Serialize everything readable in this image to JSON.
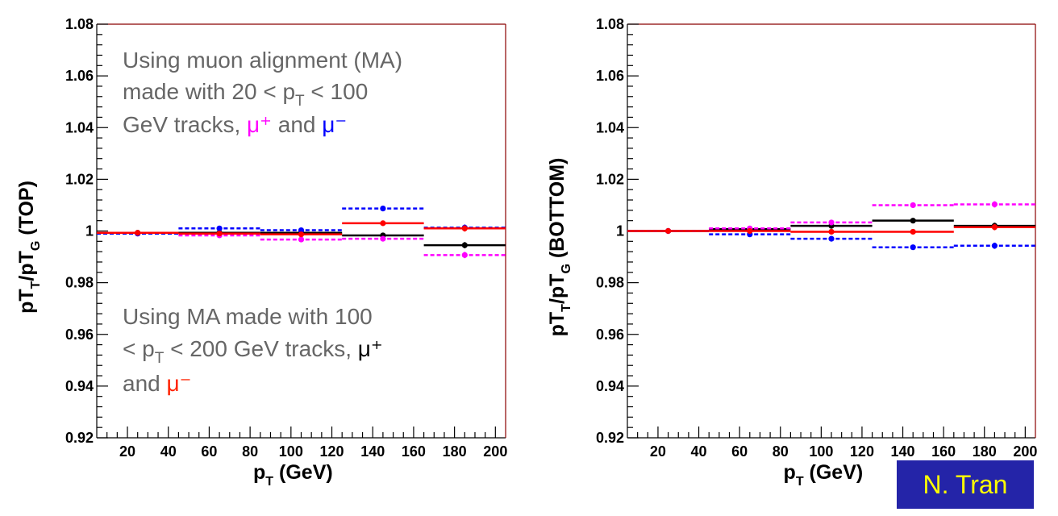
{
  "chart_data": [
    {
      "type": "scatter",
      "xlabel_main": "p",
      "xlabel_sub": "T",
      "xlabel_unit": "(GeV)",
      "ylabel": {
        "p1": "pT",
        "s1": "T",
        "p2": "/pT",
        "s2": "G",
        "p3": "(TOP)"
      },
      "xlim": [
        5,
        205
      ],
      "ylim": [
        0.92,
        1.08
      ],
      "xticks": [
        20,
        40,
        60,
        80,
        100,
        120,
        140,
        160,
        180,
        200
      ],
      "yticks": [
        0.92,
        0.94,
        0.96,
        0.98,
        1,
        1.02,
        1.04,
        1.06,
        1.08
      ],
      "ytick_labels": [
        "0.92",
        "0.94",
        "0.96",
        "0.98",
        "1",
        "1.02",
        "1.04",
        "1.06",
        "1.08"
      ],
      "series": [
        {
          "color": "#000000",
          "style": "solid",
          "bins": [
            [
              5,
              45,
              0.9993
            ],
            [
              45,
              85,
              0.9993
            ],
            [
              85,
              125,
              0.9993
            ],
            [
              125,
              165,
              0.9983
            ],
            [
              165,
              205,
              0.9945
            ]
          ],
          "points": [
            [
              25,
              0.9993
            ],
            [
              65,
              0.9993
            ],
            [
              105,
              0.9993
            ],
            [
              145,
              0.9983
            ],
            [
              185,
              0.9945
            ]
          ],
          "errors": [
            0.0003,
            0.0004,
            0.0005,
            0.0007,
            0.0012
          ]
        },
        {
          "color": "#ff00ff",
          "style": "dashed",
          "bins": [
            [
              5,
              45,
              0.999
            ],
            [
              45,
              85,
              0.9983
            ],
            [
              85,
              125,
              0.9967
            ],
            [
              125,
              165,
              0.997
            ],
            [
              165,
              205,
              0.9907
            ]
          ],
          "points": [
            [
              25,
              0.999
            ],
            [
              65,
              0.9983
            ],
            [
              105,
              0.9967
            ],
            [
              145,
              0.997
            ],
            [
              185,
              0.9907
            ]
          ],
          "errors": [
            0.0003,
            0.0004,
            0.0005,
            0.0007,
            0.0012
          ]
        },
        {
          "color": "#0000ff",
          "style": "dashed",
          "bins": [
            [
              5,
              45,
              0.999
            ],
            [
              45,
              85,
              1.001
            ],
            [
              85,
              125,
              1.0003
            ],
            [
              125,
              165,
              1.0087
            ],
            [
              165,
              205,
              1.0013
            ]
          ],
          "points": [
            [
              25,
              0.999
            ],
            [
              65,
              1.001
            ],
            [
              105,
              1.0003
            ],
            [
              145,
              1.0087
            ],
            [
              185,
              1.0013
            ]
          ],
          "errors": [
            0.0003,
            0.0004,
            0.0005,
            0.0007,
            0.0012
          ]
        },
        {
          "color": "#ff0000",
          "style": "solid",
          "bins": [
            [
              5,
              45,
              0.9993
            ],
            [
              45,
              85,
              0.999
            ],
            [
              85,
              125,
              0.9987
            ],
            [
              125,
              165,
              1.003
            ],
            [
              165,
              205,
              1.001
            ]
          ],
          "points": [
            [
              25,
              0.9993
            ],
            [
              65,
              0.999
            ],
            [
              105,
              0.9987
            ],
            [
              145,
              1.003
            ],
            [
              185,
              1.001
            ]
          ],
          "errors": [
            0.0003,
            0.0004,
            0.0005,
            0.0007,
            0.0012
          ]
        }
      ],
      "annotations": {
        "top": {
          "line1": "Using muon alignment (MA)",
          "line2a": "made with 20 < p",
          "line2sub": "T",
          "line2b": " < 100",
          "line3a": "GeV tracks, ",
          "mu_plus": "μ⁺",
          "and": " and ",
          "mu_minus": "μ⁻"
        },
        "bottom": {
          "line1": "Using MA made with 100",
          "line2a": "< p",
          "line2sub": "T",
          "line2b": " < 200 GeV tracks, ",
          "mu_plus": "μ⁺",
          "line3a": "and ",
          "mu_minus": "μ⁻"
        }
      }
    },
    {
      "type": "scatter",
      "xlabel_main": "p",
      "xlabel_sub": "T",
      "xlabel_unit": "(GeV)",
      "ylabel": {
        "p1": "pT",
        "s1": "T",
        "p2": "/pT",
        "s2": "G",
        "p3": "(BOTTOM)"
      },
      "xlim": [
        5,
        205
      ],
      "ylim": [
        0.92,
        1.08
      ],
      "xticks": [
        20,
        40,
        60,
        80,
        100,
        120,
        140,
        160,
        180,
        200
      ],
      "yticks": [
        0.92,
        0.94,
        0.96,
        0.98,
        1,
        1.02,
        1.04,
        1.06,
        1.08
      ],
      "ytick_labels": [
        "0.92",
        "0.94",
        "0.96",
        "0.98",
        "1",
        "1.02",
        "1.04",
        "1.06",
        "1.08"
      ],
      "series": [
        {
          "color": "#000000",
          "style": "solid",
          "bins": [
            [
              5,
              45,
              1.0
            ],
            [
              45,
              85,
              1.0007
            ],
            [
              85,
              125,
              1.002
            ],
            [
              125,
              165,
              1.004
            ],
            [
              165,
              205,
              1.002
            ]
          ],
          "points": [
            [
              25,
              1.0
            ],
            [
              65,
              1.0007
            ],
            [
              105,
              1.002
            ],
            [
              145,
              1.004
            ],
            [
              185,
              1.002
            ]
          ],
          "errors": [
            0.0003,
            0.0004,
            0.0005,
            0.0007,
            0.0012
          ]
        },
        {
          "color": "#ff00ff",
          "style": "dashed",
          "bins": [
            [
              5,
              45,
              1.0
            ],
            [
              45,
              85,
              1.001
            ],
            [
              85,
              125,
              1.0033
            ],
            [
              125,
              165,
              1.01
            ],
            [
              165,
              205,
              1.0103
            ]
          ],
          "points": [
            [
              25,
              1.0
            ],
            [
              65,
              1.001
            ],
            [
              105,
              1.0033
            ],
            [
              145,
              1.01
            ],
            [
              185,
              1.0103
            ]
          ],
          "errors": [
            0.0003,
            0.0004,
            0.0005,
            0.0007,
            0.0012
          ]
        },
        {
          "color": "#0000ff",
          "style": "dashed",
          "bins": [
            [
              5,
              45,
              1.0
            ],
            [
              45,
              85,
              0.9987
            ],
            [
              85,
              125,
              0.997
            ],
            [
              125,
              165,
              0.9937
            ],
            [
              165,
              205,
              0.9943
            ]
          ],
          "points": [
            [
              25,
              1.0
            ],
            [
              65,
              0.9987
            ],
            [
              105,
              0.997
            ],
            [
              145,
              0.9937
            ],
            [
              185,
              0.9943
            ]
          ],
          "errors": [
            0.0003,
            0.0004,
            0.0005,
            0.0007,
            0.0012
          ]
        },
        {
          "color": "#ff0000",
          "style": "solid",
          "bins": [
            [
              5,
              45,
              1.0
            ],
            [
              45,
              85,
              1.0
            ],
            [
              85,
              125,
              0.9997
            ],
            [
              125,
              165,
              0.9997
            ],
            [
              165,
              205,
              1.0015
            ]
          ],
          "points": [
            [
              25,
              1.0
            ],
            [
              65,
              1.0
            ],
            [
              105,
              0.9997
            ],
            [
              145,
              0.9997
            ],
            [
              185,
              1.0015
            ]
          ],
          "errors": [
            0.0003,
            0.0004,
            0.0005,
            0.0007,
            0.0012
          ]
        }
      ]
    }
  ],
  "author": "N. Tran",
  "colors": {
    "author_bg": "#2424a8",
    "author_text": "#ffff00",
    "annotation": "#666666",
    "mu_plus": "#ff00ff",
    "mu_minus_top": "#0000ff",
    "mu_minus_bottom": "#ff2200"
  }
}
